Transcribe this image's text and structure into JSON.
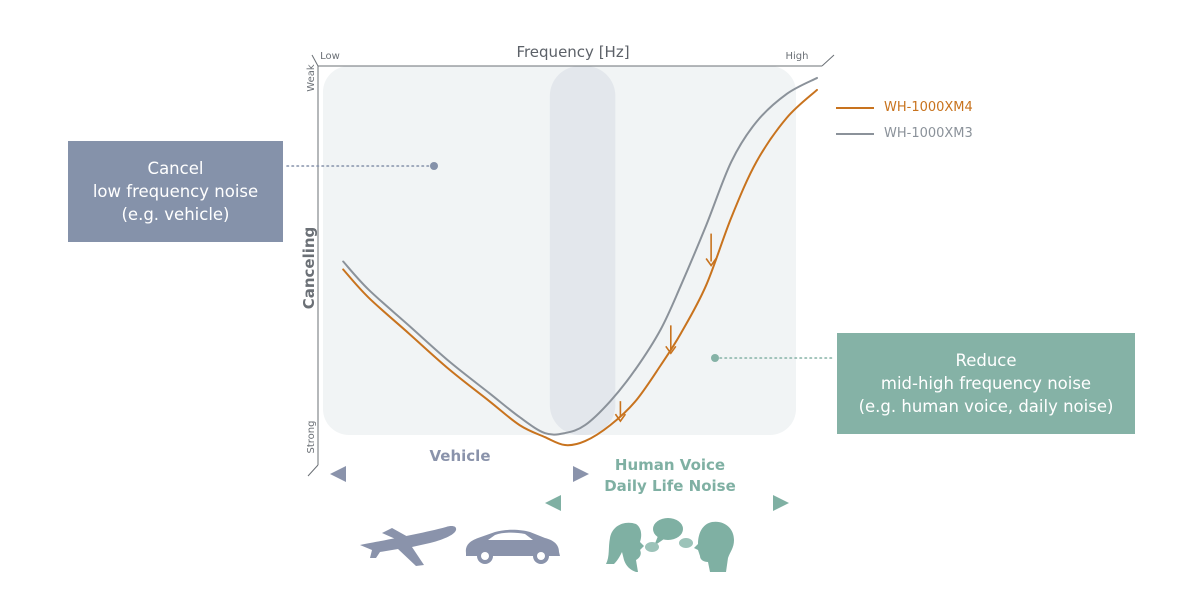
{
  "chart_data": {
    "type": "line",
    "title": "",
    "xlabel": "Frequency [Hz]",
    "ylabel": "Canceling",
    "x_axis_ends": {
      "low": "Low",
      "high": "High"
    },
    "y_axis_ends": {
      "top": "Weak",
      "bottom": "Strong"
    },
    "xlim": [
      0,
      100
    ],
    "ylim": [
      0,
      100
    ],
    "grid": false,
    "legend_position": "top-right",
    "series": [
      {
        "name": "WH-1000XM4",
        "color": "#c8731e",
        "x": [
          5,
          10,
          18,
          26,
          34,
          40,
          45,
          49,
          53,
          58,
          63,
          68,
          72,
          77,
          82,
          87,
          93,
          99
        ],
        "y": [
          49,
          42,
          33,
          24,
          16,
          10,
          7,
          5,
          6,
          10,
          16,
          25,
          33,
          45,
          62,
          76,
          87,
          94
        ]
      },
      {
        "name": "WH-1000XM3",
        "color": "#8b929a",
        "x": [
          5,
          10,
          18,
          26,
          34,
          40,
          45,
          49,
          53,
          58,
          63,
          68,
          72,
          77,
          82,
          87,
          93,
          99
        ],
        "y": [
          51,
          44,
          35,
          26,
          18,
          12,
          8,
          8,
          10,
          16,
          24,
          34,
          45,
          60,
          76,
          86,
          93,
          97
        ]
      }
    ],
    "reduction_arrows": [
      {
        "x": 60,
        "from_y": 16,
        "to_y": 11
      },
      {
        "x": 70,
        "from_y": 35,
        "to_y": 28
      },
      {
        "x": 78,
        "from_y": 58,
        "to_y": 50
      }
    ],
    "highlight_band": {
      "x_from": 46,
      "x_to": 59
    }
  },
  "callouts": {
    "left": {
      "lines": [
        "Cancel",
        "low frequency noise",
        "(e.g. vehicle)"
      ],
      "color": "#8592aa"
    },
    "right": {
      "lines": [
        "Reduce",
        "mid-high frequency noise",
        "(e.g. human voice, daily noise)"
      ],
      "color": "#85b2a6"
    }
  },
  "bands": {
    "vehicle": {
      "label": "Vehicle",
      "color": "#8a93ab"
    },
    "human": {
      "label_lines": [
        "Human Voice",
        "Daily Life Noise"
      ],
      "color": "#7fb0a3"
    }
  },
  "icons": {
    "vehicle_group": [
      "airplane-icon",
      "car-icon"
    ],
    "human_group": [
      "woman-talking-icon",
      "speech-bubbles-icon",
      "man-talking-icon"
    ]
  }
}
